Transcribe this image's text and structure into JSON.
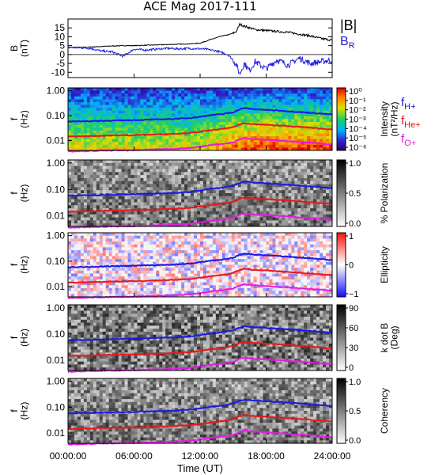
{
  "title": "ACE Mag 2017-111",
  "time_axis": {
    "ticks": [
      "00:00:00",
      "06:00:00",
      "12:00:00",
      "18:00:00",
      "24:00:00"
    ],
    "tick_hours": [
      0,
      6,
      12,
      18,
      24
    ],
    "label": "Time (UT)",
    "range_hours": [
      0,
      24
    ]
  },
  "colors": {
    "btotal": "#000000",
    "br": "#2020e0",
    "fH": "#1a1ae6",
    "fHe": "#e61a1a",
    "fO": "#e61ae6"
  },
  "chart_data": [
    {
      "type": "line",
      "panel": "field",
      "ylabel": "B\n(nT)",
      "ylim": [
        -13,
        20
      ],
      "yticks": [
        "15",
        "10",
        "5",
        "0",
        "-5",
        "-10"
      ],
      "ytick_values": [
        15,
        10,
        5,
        0,
        -5,
        -10
      ],
      "legend": [
        "|B|",
        "B_R"
      ],
      "series": [
        {
          "name": "|B|",
          "color_key": "btotal",
          "x": [
            0,
            1,
            2,
            3,
            4,
            5,
            6,
            7,
            8,
            9,
            10,
            11,
            12,
            12.5,
            13,
            13.5,
            14,
            14.5,
            15,
            15.3,
            15.6,
            16,
            16.5,
            17,
            18,
            19,
            20,
            21,
            22,
            23,
            24
          ],
          "y": [
            4,
            4,
            4.2,
            4.5,
            4.8,
            5,
            5,
            5.2,
            5.4,
            5.6,
            5.8,
            6,
            6.4,
            7.5,
            8.5,
            9.5,
            10.5,
            11,
            12,
            13,
            17,
            16,
            15,
            14,
            13.5,
            13,
            12.5,
            11.5,
            10.5,
            9,
            8
          ]
        },
        {
          "name": "B_R",
          "color_key": "br",
          "x": [
            0,
            1,
            2,
            3,
            4,
            5,
            6,
            7,
            8,
            9,
            10,
            11,
            12,
            12.5,
            13,
            13.5,
            14,
            14.5,
            15,
            15.3,
            15.6,
            16,
            16.5,
            17,
            18,
            19,
            20,
            21,
            22,
            23,
            24
          ],
          "y": [
            4,
            3.8,
            3.5,
            2,
            1.5,
            -1,
            3,
            2.5,
            3,
            3.5,
            3.2,
            3.4,
            3.2,
            3,
            2.5,
            2,
            1,
            0,
            -3,
            -6,
            -11,
            -5,
            -9,
            -4,
            -8,
            -3,
            -6,
            -2,
            -5,
            -4,
            -3
          ]
        }
      ]
    },
    {
      "type": "heatmap",
      "panel": "intensity",
      "ylabel": "f\n(Hz)",
      "yscale": "log",
      "ylim": [
        0.004,
        1.3
      ],
      "yticks": [
        "1.00",
        "0.10",
        "0.01"
      ],
      "ytick_values": [
        1,
        0.1,
        0.01
      ],
      "colorbar": {
        "label": "Intensity\n(nT²/Hz)",
        "ticks": [
          "10⁰",
          "10⁻¹",
          "10⁻²",
          "10⁻³",
          "10⁻⁴",
          "10⁻⁵",
          "10⁻⁶"
        ]
      },
      "legend": [
        "f_H+",
        "f_He+",
        "f_O+"
      ]
    },
    {
      "type": "heatmap",
      "panel": "polarization",
      "ylabel": "f\n(Hz)",
      "yscale": "log",
      "ylim": [
        0.004,
        1.3
      ],
      "yticks": [
        "1.00",
        "0.10",
        "0.01"
      ],
      "ytick_values": [
        1,
        0.1,
        0.01
      ],
      "colorbar": {
        "label": "% Polarization",
        "ticks": [
          "1.0",
          "0.5",
          "0.0"
        ]
      }
    },
    {
      "type": "heatmap",
      "panel": "ellipticity",
      "ylabel": "f\n(Hz)",
      "yscale": "log",
      "ylim": [
        0.004,
        1.3
      ],
      "yticks": [
        "1.00",
        "0.10",
        "0.01"
      ],
      "ytick_values": [
        1,
        0.1,
        0.01
      ],
      "colorbar": {
        "label": "Ellipticity",
        "ticks": [
          "1",
          "0",
          "−1"
        ]
      }
    },
    {
      "type": "heatmap",
      "panel": "kdotb",
      "ylabel": "f\n(Hz)",
      "yscale": "log",
      "ylim": [
        0.004,
        1.3
      ],
      "yticks": [
        "1.00",
        "0.10",
        "0.01"
      ],
      "ytick_values": [
        1,
        0.1,
        0.01
      ],
      "colorbar": {
        "label": "k dot B\n(Deg)",
        "ticks": [
          "90",
          "60",
          "30",
          "0"
        ]
      }
    },
    {
      "type": "heatmap",
      "panel": "coherency",
      "ylabel": "f\n(Hz)",
      "yscale": "log",
      "ylim": [
        0.004,
        1.3
      ],
      "yticks": [
        "1.00",
        "0.10",
        "0.01"
      ],
      "ytick_values": [
        1,
        0.1,
        0.01
      ],
      "colorbar": {
        "label": "Coherency",
        "ticks": [
          "1.0",
          "0.5",
          "0.0"
        ]
      }
    }
  ],
  "gyrofrequency_lines": {
    "x_hours": [
      0,
      2,
      4,
      6,
      8,
      10,
      11,
      12,
      13,
      14,
      15,
      15.5,
      16,
      17,
      18,
      19,
      20,
      21,
      22,
      23,
      24
    ],
    "fH_hz": [
      0.058,
      0.06,
      0.063,
      0.066,
      0.07,
      0.075,
      0.08,
      0.09,
      0.105,
      0.115,
      0.135,
      0.17,
      0.2,
      0.18,
      0.17,
      0.16,
      0.15,
      0.14,
      0.13,
      0.12,
      0.11
    ],
    "fHe_hz": [
      0.0145,
      0.015,
      0.016,
      0.0165,
      0.0175,
      0.019,
      0.02,
      0.0225,
      0.026,
      0.029,
      0.034,
      0.043,
      0.05,
      0.045,
      0.043,
      0.04,
      0.038,
      0.035,
      0.033,
      0.03,
      0.028
    ],
    "fO_hz": [
      0.0036,
      0.0038,
      0.004,
      0.0041,
      0.0044,
      0.0047,
      0.005,
      0.0056,
      0.0066,
      0.0072,
      0.0084,
      0.0107,
      0.0125,
      0.0113,
      0.0106,
      0.01,
      0.0094,
      0.0088,
      0.0082,
      0.0075,
      0.0069
    ]
  }
}
